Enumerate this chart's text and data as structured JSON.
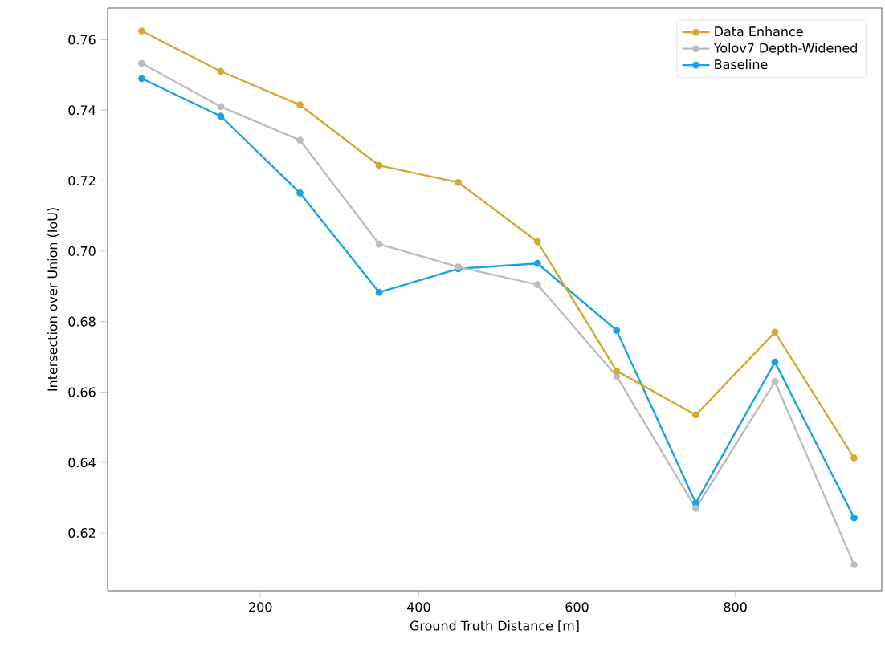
{
  "chart_data": {
    "type": "line",
    "xlabel": "Ground Truth Distance [m]",
    "ylabel": "Intersection over Union (IoU)",
    "x": [
      50,
      150,
      250,
      350,
      450,
      550,
      650,
      750,
      850,
      950
    ],
    "series": [
      {
        "name": "Data Enhance",
        "color": "#d4aa35",
        "values": [
          0.7625,
          0.751,
          0.7415,
          0.7243,
          0.7195,
          0.7027,
          0.666,
          0.6535,
          0.677,
          0.6413
        ]
      },
      {
        "name": "Yolov7 Depth-Widened",
        "color": "#bdbdbd",
        "values": [
          0.7533,
          0.741,
          0.7315,
          0.702,
          0.6955,
          0.6905,
          0.6645,
          0.627,
          0.663,
          0.611
        ]
      },
      {
        "name": "Baseline",
        "color": "#1aa3e0",
        "values": [
          0.749,
          0.7383,
          0.7165,
          0.6883,
          0.695,
          0.6965,
          0.6775,
          0.6285,
          0.6685,
          0.6243
        ]
      }
    ],
    "xlim": [
      7,
      985
    ],
    "ylim": [
      0.6036,
      0.769
    ],
    "xticks": [
      200,
      400,
      600,
      800
    ],
    "yticks": [
      0.62,
      0.64,
      0.66,
      0.68,
      {
        "value": 0.7,
        "label": "0.70"
      },
      0.72,
      0.74,
      0.76
    ],
    "marker": "circle",
    "line_style": "solid",
    "legend": "top right",
    "grid": false
  }
}
